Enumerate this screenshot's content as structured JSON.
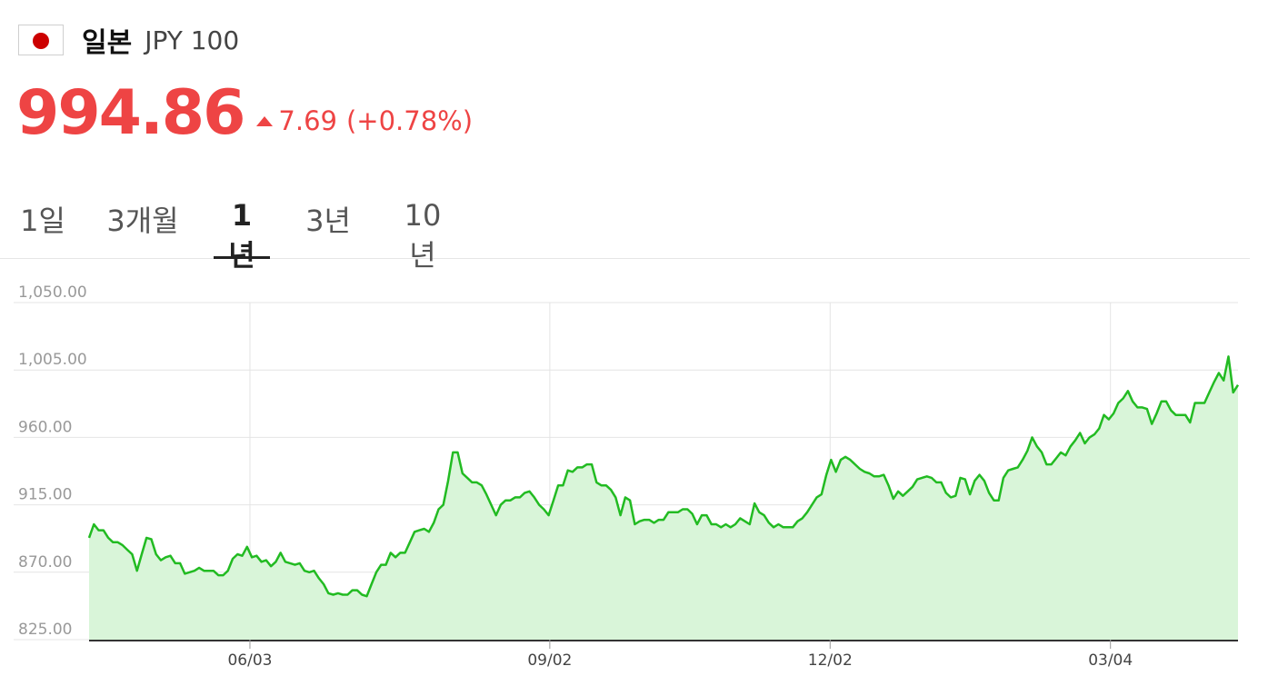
{
  "header": {
    "country": "일본",
    "currency": "JPY 100",
    "flag_icon": "japan-flag-icon",
    "flag_color": "#cc0000"
  },
  "quote": {
    "price": "994.86",
    "change": "7.69",
    "change_pct": "(+0.78%)",
    "direction": "up",
    "color": "#ee4444"
  },
  "tabs": [
    {
      "label": "1일",
      "active": false
    },
    {
      "label": "3개월",
      "active": false
    },
    {
      "label": "1년",
      "active": true
    },
    {
      "label": "3년",
      "active": false
    },
    {
      "label": "10년",
      "active": false
    }
  ],
  "chart_data": {
    "type": "area",
    "line_color": "#22bb22",
    "fill_color": "#d9f5d9",
    "ylim": [
      825,
      1050
    ],
    "y_ticks": [
      "825.00",
      "870.00",
      "915.00",
      "960.00",
      "1,005.00",
      "1,050.00"
    ],
    "x_ticks": [
      "06/03",
      "09/02",
      "12/02",
      "03/04"
    ],
    "grid": true,
    "values": [
      893,
      902,
      898,
      898,
      893,
      890,
      890,
      888,
      885,
      882,
      871,
      882,
      893,
      892,
      882,
      878,
      880,
      881,
      876,
      876,
      869,
      870,
      871,
      873,
      871,
      871,
      871,
      868,
      868,
      871,
      879,
      882,
      881,
      887,
      880,
      881,
      877,
      878,
      874,
      877,
      883,
      877,
      876,
      875,
      876,
      871,
      870,
      871,
      866,
      862,
      856,
      855,
      856,
      855,
      855,
      858,
      858,
      855,
      854,
      862,
      870,
      875,
      875,
      883,
      880,
      883,
      883,
      890,
      897,
      898,
      899,
      897,
      903,
      912,
      915,
      931,
      950,
      950,
      936,
      933,
      930,
      930,
      928,
      922,
      915,
      908,
      915,
      918,
      918,
      920,
      920,
      923,
      924,
      920,
      915,
      912,
      908,
      918,
      928,
      928,
      938,
      937,
      940,
      940,
      942,
      942,
      930,
      928,
      928,
      925,
      920,
      908,
      920,
      918,
      902,
      904,
      905,
      905,
      903,
      905,
      905,
      910,
      910,
      910,
      912,
      912,
      909,
      902,
      908,
      908,
      902,
      902,
      900,
      902,
      900,
      902,
      906,
      904,
      902,
      916,
      910,
      908,
      903,
      900,
      902,
      900,
      900,
      900,
      904,
      906,
      910,
      915,
      920,
      922,
      935,
      945,
      937,
      945,
      947,
      945,
      942,
      939,
      937,
      936,
      934,
      934,
      935,
      928,
      919,
      924,
      921,
      924,
      927,
      932,
      933,
      934,
      933,
      930,
      930,
      923,
      920,
      921,
      933,
      932,
      922,
      931,
      935,
      931,
      923,
      918,
      918,
      933,
      938,
      939,
      940,
      945,
      951,
      960,
      954,
      950,
      942,
      942,
      946,
      950,
      948,
      954,
      958,
      963,
      956,
      960,
      962,
      966,
      975,
      972,
      976,
      983,
      986,
      991,
      984,
      980,
      980,
      979,
      969,
      976,
      984,
      984,
      978,
      975,
      975,
      975,
      970,
      983,
      983,
      983,
      990,
      997,
      1003,
      998,
      1014,
      990,
      995
    ]
  }
}
